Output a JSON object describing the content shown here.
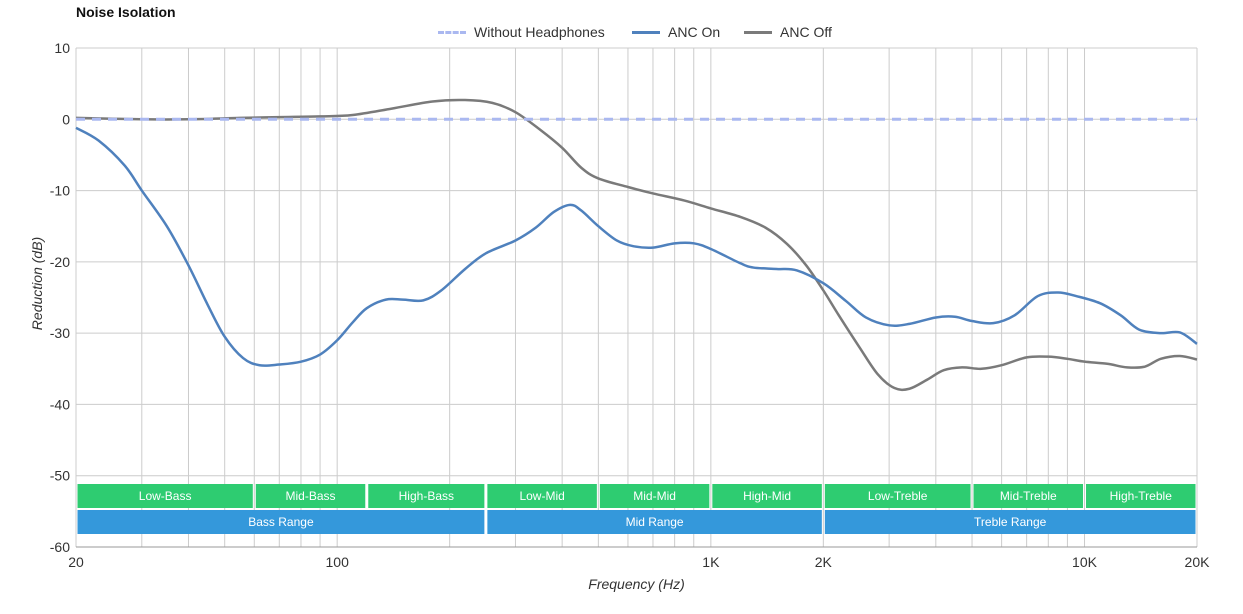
{
  "title": "Noise Isolation",
  "colors": {
    "without": "#aab8f0",
    "anc_on": "#4f81bd",
    "anc_off": "#7a7a7a",
    "band_green": "#2ecc71",
    "band_blue": "#3498db",
    "grid": "#cccccc"
  },
  "chart_data": {
    "type": "line",
    "title": "Noise Isolation",
    "xlabel": "Frequency (Hz)",
    "ylabel": "Reduction (dB)",
    "x_scale": "log",
    "xlim": [
      20,
      20000
    ],
    "ylim": [
      -60,
      10
    ],
    "x_ticks": [
      {
        "value": 20,
        "label": "20"
      },
      {
        "value": 100,
        "label": "100"
      },
      {
        "value": 1000,
        "label": "1K"
      },
      {
        "value": 2000,
        "label": "2K"
      },
      {
        "value": 10000,
        "label": "10K"
      },
      {
        "value": 20000,
        "label": "20K"
      }
    ],
    "y_ticks": [
      10,
      0,
      -10,
      -20,
      -30,
      -40,
      -50,
      -60
    ],
    "grid": true,
    "legend_position": "top-center",
    "series": [
      {
        "name": "Without Headphones",
        "style": "dashed",
        "points": [
          [
            20,
            0
          ],
          [
            20000,
            0
          ]
        ]
      },
      {
        "name": "ANC On",
        "style": "solid",
        "points": [
          [
            20,
            -1.2
          ],
          [
            23,
            -3
          ],
          [
            27,
            -6.5
          ],
          [
            30,
            -10
          ],
          [
            35,
            -15
          ],
          [
            40,
            -20.5
          ],
          [
            45,
            -26
          ],
          [
            50,
            -30.5
          ],
          [
            56,
            -33.5
          ],
          [
            62,
            -34.5
          ],
          [
            70,
            -34.4
          ],
          [
            80,
            -34
          ],
          [
            90,
            -33
          ],
          [
            100,
            -31
          ],
          [
            110,
            -28.5
          ],
          [
            120,
            -26.5
          ],
          [
            135,
            -25.3
          ],
          [
            150,
            -25.3
          ],
          [
            170,
            -25.4
          ],
          [
            190,
            -24
          ],
          [
            220,
            -21
          ],
          [
            250,
            -18.8
          ],
          [
            300,
            -17
          ],
          [
            340,
            -15.2
          ],
          [
            380,
            -13
          ],
          [
            420,
            -12
          ],
          [
            450,
            -12.8
          ],
          [
            500,
            -15
          ],
          [
            560,
            -17
          ],
          [
            620,
            -17.8
          ],
          [
            700,
            -18
          ],
          [
            800,
            -17.4
          ],
          [
            900,
            -17.4
          ],
          [
            1000,
            -18.2
          ],
          [
            1200,
            -20.2
          ],
          [
            1300,
            -20.8
          ],
          [
            1500,
            -21
          ],
          [
            1700,
            -21.2
          ],
          [
            2000,
            -23
          ],
          [
            2300,
            -25.5
          ],
          [
            2600,
            -27.8
          ],
          [
            3000,
            -28.9
          ],
          [
            3400,
            -28.7
          ],
          [
            4000,
            -27.8
          ],
          [
            4500,
            -27.7
          ],
          [
            5000,
            -28.3
          ],
          [
            5700,
            -28.6
          ],
          [
            6500,
            -27.5
          ],
          [
            7500,
            -24.8
          ],
          [
            8500,
            -24.3
          ],
          [
            9500,
            -24.8
          ],
          [
            11000,
            -25.8
          ],
          [
            12500,
            -27.5
          ],
          [
            14000,
            -29.5
          ],
          [
            16000,
            -30
          ],
          [
            18000,
            -29.9
          ],
          [
            20000,
            -31.5
          ]
        ]
      },
      {
        "name": "ANC Off",
        "style": "solid",
        "points": [
          [
            20,
            0.2
          ],
          [
            30,
            0
          ],
          [
            40,
            0
          ],
          [
            55,
            0.2
          ],
          [
            70,
            0.3
          ],
          [
            90,
            0.4
          ],
          [
            110,
            0.6
          ],
          [
            140,
            1.5
          ],
          [
            180,
            2.5
          ],
          [
            220,
            2.7
          ],
          [
            260,
            2.3
          ],
          [
            300,
            1
          ],
          [
            350,
            -1.5
          ],
          [
            400,
            -4
          ],
          [
            450,
            -6.8
          ],
          [
            500,
            -8.3
          ],
          [
            600,
            -9.5
          ],
          [
            700,
            -10.4
          ],
          [
            850,
            -11.4
          ],
          [
            1000,
            -12.5
          ],
          [
            1200,
            -13.7
          ],
          [
            1400,
            -15.2
          ],
          [
            1600,
            -17.5
          ],
          [
            1800,
            -20.5
          ],
          [
            2000,
            -24
          ],
          [
            2200,
            -27.5
          ],
          [
            2500,
            -32
          ],
          [
            2800,
            -35.8
          ],
          [
            3100,
            -37.7
          ],
          [
            3400,
            -37.8
          ],
          [
            3800,
            -36.5
          ],
          [
            4200,
            -35.2
          ],
          [
            4700,
            -34.8
          ],
          [
            5300,
            -35
          ],
          [
            6000,
            -34.5
          ],
          [
            7000,
            -33.4
          ],
          [
            8000,
            -33.3
          ],
          [
            9000,
            -33.6
          ],
          [
            10000,
            -34
          ],
          [
            11500,
            -34.3
          ],
          [
            13000,
            -34.8
          ],
          [
            14500,
            -34.7
          ],
          [
            16000,
            -33.6
          ],
          [
            18000,
            -33.2
          ],
          [
            20000,
            -33.7
          ]
        ]
      }
    ],
    "bands": [
      [
        {
          "label": "Low-Bass",
          "from": 20,
          "to": 60
        },
        {
          "label": "Mid-Bass",
          "from": 60,
          "to": 120
        },
        {
          "label": "High-Bass",
          "from": 120,
          "to": 250
        },
        {
          "label": "Low-Mid",
          "from": 250,
          "to": 500
        },
        {
          "label": "Mid-Mid",
          "from": 500,
          "to": 1000
        },
        {
          "label": "High-Mid",
          "from": 1000,
          "to": 2000
        },
        {
          "label": "Low-Treble",
          "from": 2000,
          "to": 5000
        },
        {
          "label": "Mid-Treble",
          "from": 5000,
          "to": 10000
        },
        {
          "label": "High-Treble",
          "from": 10000,
          "to": 20000
        }
      ],
      [
        {
          "label": "Bass Range",
          "from": 20,
          "to": 250
        },
        {
          "label": "Mid Range",
          "from": 250,
          "to": 2000
        },
        {
          "label": "Treble Range",
          "from": 2000,
          "to": 20000
        }
      ]
    ]
  }
}
